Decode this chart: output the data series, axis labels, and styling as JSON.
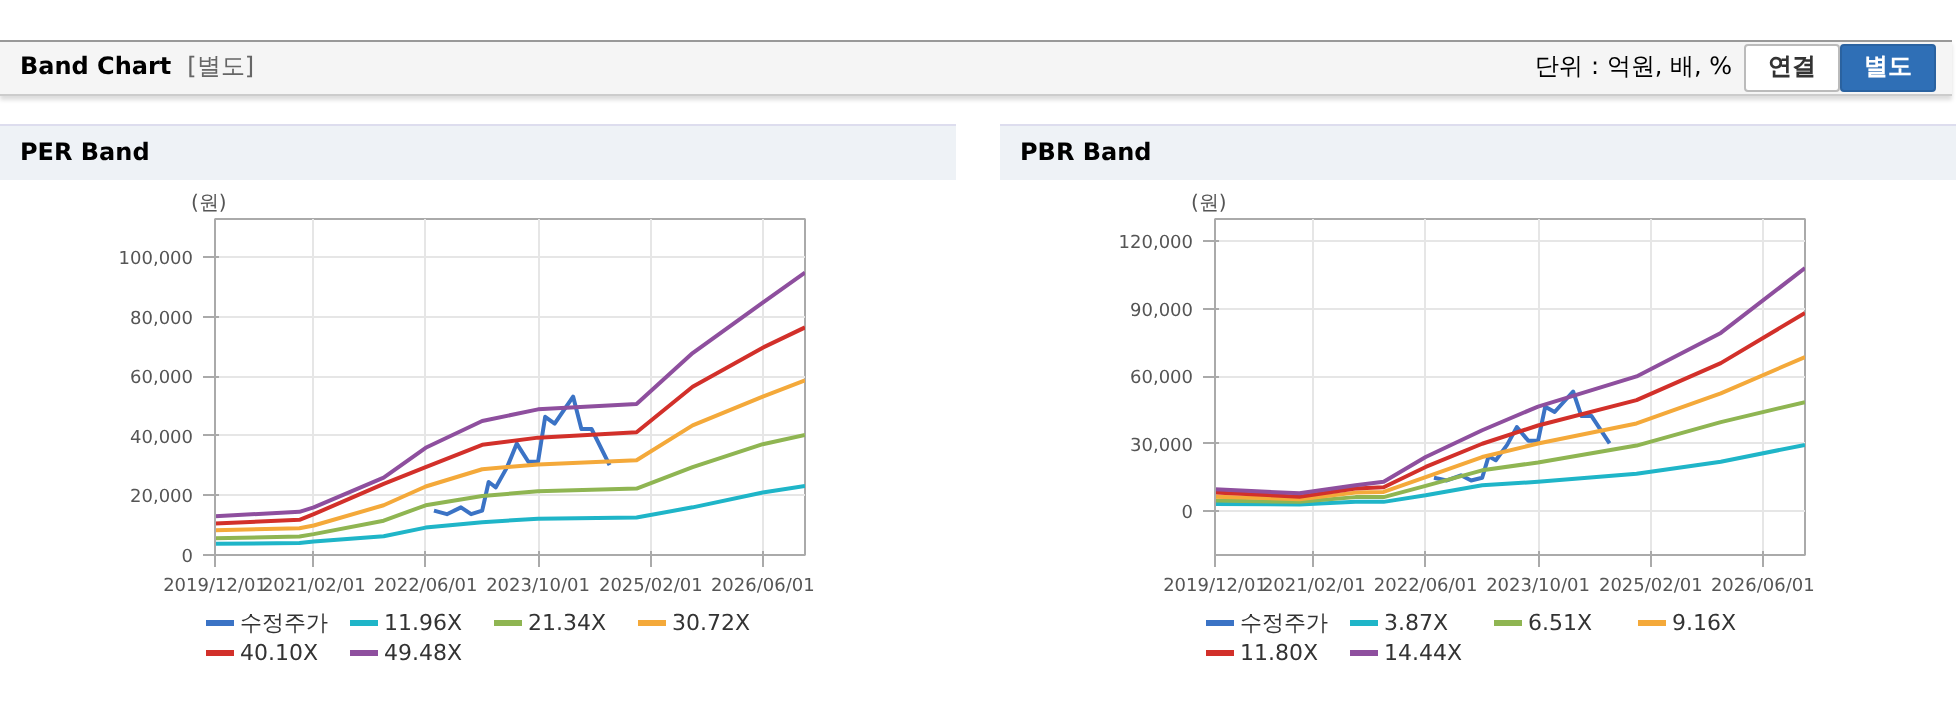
{
  "chart_data": [
    {
      "type": "other",
      "title": "Band Chart",
      "subtitle": "[별도]",
      "annotations": [
        "단위 : 억원, 배, %",
        "연결",
        "별도"
      ]
    },
    {
      "type": "line",
      "title": "PER Band",
      "ylabel": "(원)",
      "x": [
        "2019-12-01",
        "2020-12-01",
        "2021-02-01",
        "2021-12-01",
        "2022-06-01",
        "2023-02-01",
        "2023-10-01",
        "2024-12-01",
        "2025-08-01",
        "2026-06-01",
        "2026-12-01"
      ],
      "xlim": [
        "2019-12-01",
        "2026-12-01"
      ],
      "xticks": [
        {
          "value": "2019-12-01",
          "label": "2019/12/01"
        },
        {
          "value": "2021-02-01",
          "label": "2021/02/01"
        },
        {
          "value": "2022-06-01",
          "label": "2022/06/01"
        },
        {
          "value": "2023-10-01",
          "label": "2023/10/01"
        },
        {
          "value": "2025-02-01",
          "label": "2025/02/01"
        },
        {
          "value": "2026-06-01",
          "label": "2026/06/01"
        }
      ],
      "ylim": [
        0,
        112800
      ],
      "yticks": [
        0,
        {
          "value": 20000,
          "label": "20,000"
        },
        {
          "value": 40000,
          "label": "40,000"
        },
        {
          "value": 60000,
          "label": "60,000"
        },
        {
          "value": 80000,
          "label": "80,000"
        },
        {
          "value": 100000,
          "label": "100,000"
        }
      ],
      "grid": true,
      "legend": "bottom",
      "marker": "none",
      "line_style": "solid",
      "series": [
        {
          "name": "수정주가",
          "color": "#3b73c5",
          "x": [
            "2022-07-07",
            "2022-09-01",
            "2022-11-01",
            "2022-12-15",
            "2023-02-01",
            "2023-03-01",
            "2023-04-01",
            "2023-05-20",
            "2023-07-01",
            "2023-08-20",
            "2023-10-01",
            "2023-11-01",
            "2023-12-12",
            "2024-03-01",
            "2024-04-06",
            "2024-05-20",
            "2024-08-06"
          ],
          "values": [
            14900,
            13700,
            16000,
            13700,
            14900,
            24500,
            22700,
            29500,
            37400,
            31300,
            31300,
            46400,
            44100,
            53200,
            42300,
            42300,
            30200
          ]
        },
        {
          "name": "11.96X",
          "color": "#1fb5c8",
          "values": [
            3800,
            4000,
            4500,
            6300,
            9200,
            11000,
            12200,
            12600,
            16000,
            21000,
            23200
          ]
        },
        {
          "name": "21.34X",
          "color": "#8fb552",
          "values": [
            5600,
            6200,
            7000,
            11500,
            16700,
            19800,
            21400,
            22300,
            29500,
            37200,
            40300
          ]
        },
        {
          "name": "30.72X",
          "color": "#f4a93a",
          "values": [
            8300,
            9000,
            9900,
            16700,
            23000,
            28800,
            30400,
            31800,
            43500,
            53200,
            58600
          ]
        },
        {
          "name": "40.10X",
          "color": "#d2302a",
          "values": [
            10600,
            11800,
            13700,
            23900,
            29500,
            37000,
            39400,
            41200,
            56500,
            69600,
            76400
          ]
        },
        {
          "name": "49.48X",
          "color": "#8e4f9e",
          "values": [
            13000,
            14500,
            16000,
            26000,
            36000,
            45000,
            48900,
            50700,
            67800,
            84700,
            94800
          ]
        }
      ]
    },
    {
      "type": "line",
      "title": "PBR Band",
      "ylabel": "(원)",
      "x": [
        "2019-12-01",
        "2020-12-01",
        "2021-08-01",
        "2021-12-01",
        "2022-06-01",
        "2023-02-01",
        "2023-10-01",
        "2024-12-01",
        "2025-12-01",
        "2026-12-01"
      ],
      "xlim": [
        "2019-12-01",
        "2026-12-01"
      ],
      "xticks": [
        {
          "value": "2019-12-01",
          "label": "2019/12/01"
        },
        {
          "value": "2021-02-01",
          "label": "2021/02/01"
        },
        {
          "value": "2022-06-01",
          "label": "2022/06/01"
        },
        {
          "value": "2023-10-01",
          "label": "2023/10/01"
        },
        {
          "value": "2025-02-01",
          "label": "2025/02/01"
        },
        {
          "value": "2026-06-01",
          "label": "2026/06/01"
        }
      ],
      "ylim": [
        -19400,
        129800
      ],
      "yticks": [
        0,
        {
          "value": 30000,
          "label": "30,000"
        },
        {
          "value": 60000,
          "label": "60,000"
        },
        {
          "value": 90000,
          "label": "90,000"
        },
        {
          "value": 120000,
          "label": "120,000"
        }
      ],
      "grid": true,
      "legend": "bottom",
      "marker": "none",
      "line_style": "solid",
      "series": [
        {
          "name": "수정주가",
          "color": "#3b73c5",
          "x": [
            "2022-07-07",
            "2022-09-01",
            "2022-11-01",
            "2022-12-15",
            "2023-02-01",
            "2023-03-01",
            "2023-04-01",
            "2023-05-20",
            "2023-07-01",
            "2023-08-20",
            "2023-10-01",
            "2023-11-01",
            "2023-12-12",
            "2024-03-01",
            "2024-04-06",
            "2024-05-20",
            "2024-08-06"
          ],
          "values": [
            14900,
            13700,
            16000,
            13700,
            14900,
            24500,
            22700,
            29500,
            37400,
            31300,
            31300,
            46400,
            44100,
            53200,
            42300,
            42300,
            30200
          ]
        },
        {
          "name": "3.87X",
          "color": "#1fb5c8",
          "values": [
            3300,
            3000,
            4200,
            4200,
            7100,
            11600,
            13100,
            16700,
            22000,
            29500
          ]
        },
        {
          "name": "6.51X",
          "color": "#8fb552",
          "values": [
            4800,
            4200,
            6300,
            6300,
            11300,
            18200,
            21700,
            29200,
            39600,
            48500
          ]
        },
        {
          "name": "9.16X",
          "color": "#f4a93a",
          "values": [
            6500,
            5400,
            8300,
            8600,
            15200,
            24100,
            30100,
            39000,
            52400,
            68500
          ]
        },
        {
          "name": "11.80X",
          "color": "#d2302a",
          "values": [
            8300,
            6500,
            10100,
            10700,
            19700,
            30000,
            38100,
            49400,
            65800,
            88100
          ]
        },
        {
          "name": "14.44X",
          "color": "#8e4f9e",
          "values": [
            9800,
            8000,
            11600,
            13100,
            24100,
            36000,
            46500,
            59900,
            79200,
            108000
          ]
        }
      ]
    }
  ]
}
